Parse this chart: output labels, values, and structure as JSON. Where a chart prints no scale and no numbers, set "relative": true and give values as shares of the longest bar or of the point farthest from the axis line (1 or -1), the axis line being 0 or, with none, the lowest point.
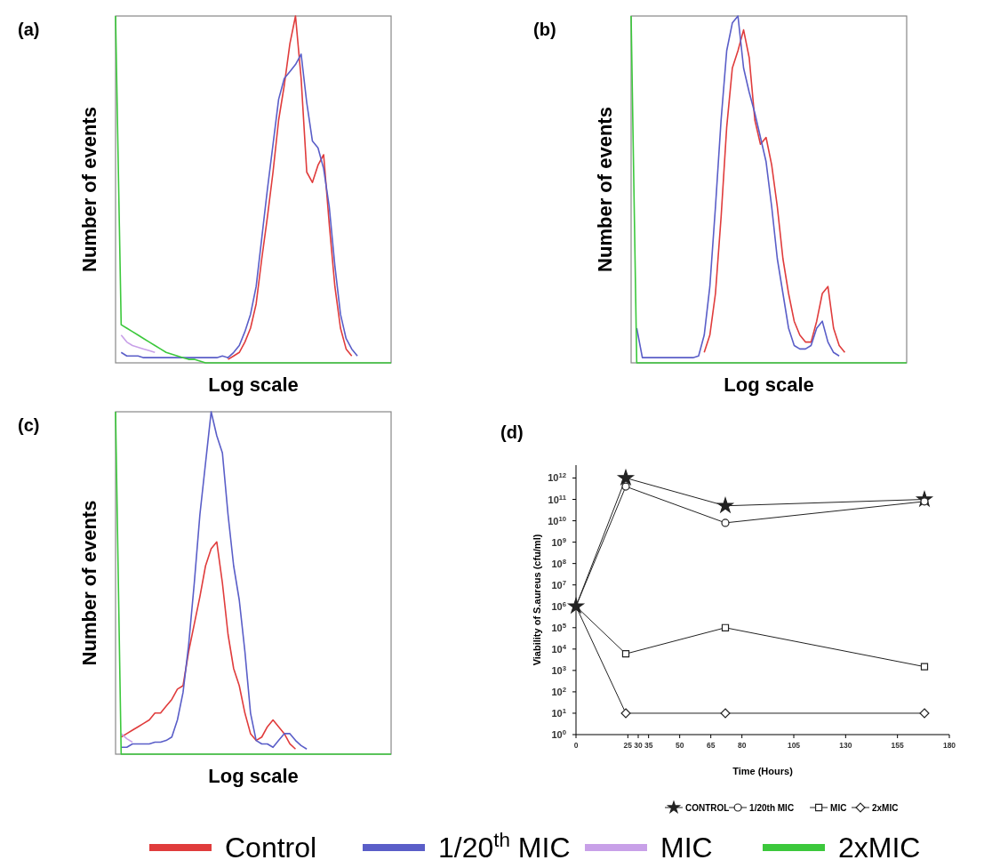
{
  "chart_data": [
    {
      "type": "line",
      "title": "(a)",
      "xlabel": "Log scale",
      "ylabel": "Number of events",
      "relative": true,
      "categories": [
        null,
        null,
        null,
        null,
        null,
        null,
        null,
        null,
        null,
        null,
        null,
        null,
        null,
        null,
        null,
        null,
        null,
        null,
        null,
        null,
        null,
        null,
        null,
        null,
        null,
        null,
        null,
        null,
        null,
        null,
        null,
        null,
        null,
        null,
        null,
        null,
        null,
        null,
        null,
        null,
        null,
        null,
        null,
        null,
        null,
        null,
        null,
        null,
        null,
        null
      ],
      "series": [
        {
          "color": "#e03c3c",
          "values": [
            null,
            null,
            null,
            null,
            null,
            null,
            null,
            null,
            null,
            null,
            null,
            null,
            null,
            null,
            null,
            null,
            null,
            null,
            null,
            null,
            0.01,
            0.02,
            0.03,
            0.06,
            0.1,
            0.17,
            0.3,
            0.42,
            0.55,
            0.7,
            0.8,
            0.92,
            1.0,
            0.82,
            0.55,
            0.52,
            0.57,
            0.6,
            0.4,
            0.22,
            0.1,
            0.04,
            0.02,
            null,
            null,
            null,
            null,
            null,
            null,
            null
          ]
        },
        {
          "color": "#5a5ec8",
          "values": [
            null,
            0.03,
            0.02,
            0.02,
            0.02,
            0.015,
            0.015,
            0.015,
            0.015,
            0.015,
            0.015,
            0.015,
            0.015,
            0.015,
            0.015,
            0.015,
            0.015,
            0.015,
            0.015,
            0.02,
            0.015,
            0.03,
            0.05,
            0.09,
            0.14,
            0.22,
            0.36,
            0.5,
            0.63,
            0.76,
            0.82,
            0.84,
            0.86,
            0.89,
            0.75,
            0.64,
            0.62,
            0.56,
            0.45,
            0.28,
            0.14,
            0.07,
            0.04,
            0.02,
            null,
            null,
            null,
            null,
            null,
            null
          ]
        },
        {
          "color": "#c8a0e8",
          "values": [
            null,
            0.08,
            0.06,
            0.05,
            0.045,
            0.04,
            0.035,
            0.03,
            null,
            null,
            null,
            null,
            null,
            null,
            null,
            null,
            null,
            null,
            null,
            null,
            null,
            null,
            null,
            null,
            null,
            null,
            null,
            null,
            null,
            null,
            null,
            null,
            null,
            null,
            null,
            null,
            null,
            null,
            null,
            null,
            null,
            null,
            null,
            null,
            null,
            null,
            null,
            null,
            null,
            null
          ]
        },
        {
          "color": "#3cc83c",
          "values": [
            1.0,
            0.11,
            0.1,
            0.09,
            0.08,
            0.07,
            0.06,
            0.05,
            0.04,
            0.03,
            0.025,
            0.02,
            0.015,
            0.01,
            0.01,
            0.005,
            0,
            0,
            0,
            0,
            0,
            0,
            0,
            0,
            0,
            0,
            0,
            0,
            0,
            0,
            0,
            0,
            0,
            0,
            0,
            0,
            0,
            0,
            0,
            0,
            0,
            0,
            0,
            0,
            0,
            0,
            0,
            0,
            0,
            0
          ]
        }
      ]
    },
    {
      "type": "line",
      "title": "(b)",
      "xlabel": "Log scale",
      "ylabel": "Number of events",
      "relative": true,
      "categories": [
        null,
        null,
        null,
        null,
        null,
        null,
        null,
        null,
        null,
        null,
        null,
        null,
        null,
        null,
        null,
        null,
        null,
        null,
        null,
        null,
        null,
        null,
        null,
        null,
        null,
        null,
        null,
        null,
        null,
        null,
        null,
        null,
        null,
        null,
        null,
        null,
        null,
        null,
        null,
        null,
        null,
        null,
        null,
        null,
        null,
        null,
        null,
        null,
        null,
        null
      ],
      "series": [
        {
          "color": "#e03c3c",
          "values": [
            null,
            null,
            null,
            null,
            null,
            null,
            null,
            null,
            null,
            null,
            null,
            null,
            null,
            0.03,
            0.08,
            0.2,
            0.42,
            0.68,
            0.85,
            0.9,
            0.96,
            0.88,
            0.7,
            0.63,
            0.65,
            0.57,
            0.45,
            0.3,
            0.2,
            0.12,
            0.08,
            0.06,
            0.06,
            0.12,
            0.2,
            0.22,
            0.1,
            0.05,
            0.03,
            null,
            null,
            null,
            null,
            null,
            null,
            null,
            null,
            null,
            null,
            null
          ]
        },
        {
          "color": "#5a5ec8",
          "values": [
            null,
            0.1,
            0.015,
            0.015,
            0.015,
            0.015,
            0.015,
            0.015,
            0.015,
            0.015,
            0.015,
            0.015,
            0.02,
            0.08,
            0.22,
            0.45,
            0.7,
            0.9,
            0.98,
            1.0,
            0.85,
            0.78,
            0.72,
            0.65,
            0.58,
            0.45,
            0.3,
            0.2,
            0.1,
            0.05,
            0.04,
            0.04,
            0.05,
            0.1,
            0.12,
            0.06,
            0.03,
            0.02,
            null,
            null,
            null,
            null,
            null,
            null,
            null,
            null,
            null,
            null,
            null,
            null
          ]
        },
        {
          "color": "#3cc83c",
          "values": [
            1.0,
            0,
            0,
            0,
            0,
            0,
            0,
            0,
            0,
            0,
            0,
            0,
            0,
            0,
            0,
            0,
            0,
            0,
            0,
            0,
            0,
            0,
            0,
            0,
            0,
            0,
            0,
            0,
            0,
            0,
            0,
            0,
            0,
            0,
            0,
            0,
            0,
            0,
            0,
            0,
            0,
            0,
            0,
            0,
            0,
            0,
            0,
            0,
            0,
            0
          ]
        }
      ]
    },
    {
      "type": "line",
      "title": "(c)",
      "xlabel": "Log scale",
      "ylabel": "Number of events",
      "relative": true,
      "legend": "bottom",
      "categories": [
        null,
        null,
        null,
        null,
        null,
        null,
        null,
        null,
        null,
        null,
        null,
        null,
        null,
        null,
        null,
        null,
        null,
        null,
        null,
        null,
        null,
        null,
        null,
        null,
        null,
        null,
        null,
        null,
        null,
        null,
        null,
        null,
        null,
        null,
        null,
        null,
        null,
        null,
        null,
        null,
        null,
        null,
        null,
        null,
        null,
        null,
        null,
        null,
        null,
        null
      ],
      "series": [
        {
          "name": "Control",
          "color": "#e03c3c",
          "values": [
            null,
            0.05,
            0.06,
            0.07,
            0.08,
            0.09,
            0.1,
            0.12,
            0.12,
            0.14,
            0.16,
            0.19,
            0.2,
            0.3,
            0.38,
            0.46,
            0.55,
            0.6,
            0.62,
            0.5,
            0.35,
            0.25,
            0.2,
            0.12,
            0.06,
            0.04,
            0.05,
            0.08,
            0.1,
            0.08,
            0.06,
            0.03,
            0.015,
            null,
            null,
            null,
            null,
            null,
            null,
            null,
            null,
            null,
            null,
            null,
            null,
            null,
            null,
            null,
            null,
            null
          ]
        },
        {
          "name": "1/20$^{th}$ MIC",
          "color": "#5a5ec8",
          "values": [
            null,
            0.02,
            0.02,
            0.03,
            0.03,
            0.03,
            0.03,
            0.035,
            0.035,
            0.04,
            0.05,
            0.1,
            0.18,
            0.32,
            0.5,
            0.7,
            0.85,
            1.0,
            0.93,
            0.88,
            0.7,
            0.55,
            0.45,
            0.3,
            0.12,
            0.04,
            0.03,
            0.03,
            0.02,
            0.04,
            0.06,
            0.06,
            0.04,
            0.025,
            0.015,
            null,
            null,
            null,
            null,
            null,
            null,
            null,
            null,
            null,
            null,
            null,
            null,
            null,
            null,
            null
          ]
        },
        {
          "name": "MIC",
          "color": "#c8a0e8",
          "values": [
            null,
            0.06,
            0.045,
            0.035,
            null,
            null,
            null,
            null,
            null,
            null,
            null,
            null,
            null,
            null,
            null,
            null,
            null,
            null,
            null,
            null,
            null,
            null,
            null,
            null,
            null,
            null,
            null,
            null,
            null,
            null,
            null,
            null,
            null,
            null,
            null,
            null,
            null,
            null,
            null,
            null,
            null,
            null,
            null,
            null,
            null,
            null,
            null,
            null,
            null,
            null
          ]
        },
        {
          "name": "2xMIC",
          "color": "#3cc83c",
          "values": [
            1.0,
            0,
            0,
            0,
            0,
            0,
            0,
            0,
            0,
            0,
            0,
            0,
            0,
            0,
            0,
            0,
            0,
            0,
            0,
            0,
            0,
            0,
            0,
            0,
            0,
            0,
            0,
            0,
            0,
            0,
            0,
            0,
            0,
            0,
            0,
            0,
            0,
            0,
            0,
            0,
            0,
            0,
            0,
            0,
            0,
            0,
            0,
            0,
            0,
            0
          ]
        }
      ]
    },
    {
      "type": "line",
      "title": "(d)",
      "xlabel": "Time (Hours)",
      "ylabel": "Viability of S.aureus (cfu/ml)",
      "log": "y",
      "legend": "bottom",
      "x": [
        0,
        24,
        72,
        168
      ],
      "xlim": [
        0,
        180
      ],
      "xticks": [
        0,
        25,
        30,
        35,
        50,
        65,
        80,
        105,
        130,
        155,
        180
      ],
      "ylim": [
        1,
        4000000000000
      ],
      "yticks": [
        {
          "value": 1,
          "label": "10$^{0}$"
        },
        {
          "value": 10,
          "label": "10$^{1}$"
        },
        {
          "value": 100,
          "label": "10$^{2}$"
        },
        {
          "value": 1000,
          "label": "10$^{3}$"
        },
        {
          "value": 10000,
          "label": "10$^{4}$"
        },
        {
          "value": 100000,
          "label": "10$^{5}$"
        },
        {
          "value": 1000000,
          "label": "10$^{6}$"
        },
        {
          "value": 10000000,
          "label": "10$^{7}$"
        },
        {
          "value": 100000000,
          "label": "10$^{8}$"
        },
        {
          "value": 1000000000,
          "label": "10$^{9}$"
        },
        {
          "value": 10000000000,
          "label": "10$^{10}$"
        },
        {
          "value": 100000000000,
          "label": "10$^{11}$"
        },
        {
          "value": 1000000000000,
          "label": "10$^{12}$"
        }
      ],
      "series": [
        {
          "name": "CONTROL",
          "color": "#222222",
          "marker": "star",
          "values": [
            1000000,
            1000000000000,
            50000000000,
            100000000000
          ]
        },
        {
          "name": "1/20th MIC",
          "color": "#222222",
          "marker": "circle",
          "values": [
            1000000,
            400000000000,
            8000000000,
            80000000000
          ]
        },
        {
          "name": "MIC",
          "color": "#222222",
          "marker": "square",
          "values": [
            1000000,
            6000,
            100000,
            1500
          ]
        },
        {
          "name": "2xMIC",
          "color": "#222222",
          "marker": "diamond",
          "values": [
            1000000,
            10,
            10,
            10
          ]
        }
      ]
    }
  ]
}
